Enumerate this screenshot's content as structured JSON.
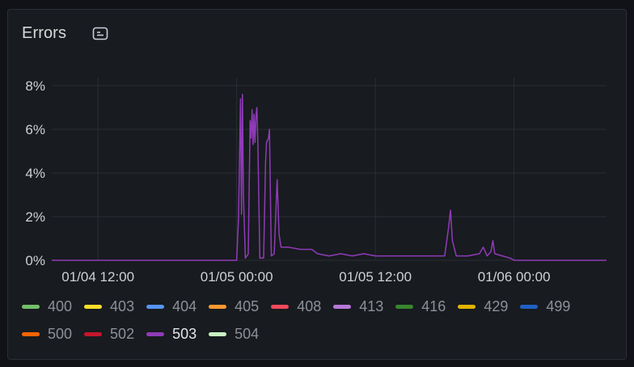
{
  "panel": {
    "title": "Errors",
    "description_icon": "info-description-icon"
  },
  "chart_data": {
    "type": "line",
    "title": "Errors",
    "xlabel": "",
    "ylabel": "",
    "y_ticks": [
      "0%",
      "2%",
      "4%",
      "6%",
      "8%"
    ],
    "ylim": [
      0,
      8
    ],
    "x_ticks": [
      "01/04 12:00",
      "01/05 00:00",
      "01/05 12:00",
      "01/06 00:00"
    ],
    "xlim": [
      "01/04 08:00",
      "01/06 08:00"
    ],
    "grid": true,
    "legend_position": "bottom",
    "visible_series": "503",
    "series_points": [
      [
        "01/04 08:00",
        0.0
      ],
      [
        "01/04 12:00",
        0.0
      ],
      [
        "01/04 18:00",
        0.0
      ],
      [
        "01/04 23:30",
        0.0
      ],
      [
        "01/05 00:00",
        0.0
      ],
      [
        "01/05 00:10",
        2.0
      ],
      [
        "01/05 00:20",
        7.4
      ],
      [
        "01/05 00:25",
        2.1
      ],
      [
        "01/05 00:30",
        7.6
      ],
      [
        "01/05 00:35",
        3.0
      ],
      [
        "01/05 00:45",
        0.1
      ],
      [
        "01/05 01:00",
        0.3
      ],
      [
        "01/05 01:10",
        6.4
      ],
      [
        "01/05 01:15",
        5.6
      ],
      [
        "01/05 01:20",
        6.9
      ],
      [
        "01/05 01:25",
        5.3
      ],
      [
        "01/05 01:30",
        6.7
      ],
      [
        "01/05 01:35",
        5.4
      ],
      [
        "01/05 01:40",
        6.6
      ],
      [
        "01/05 01:45",
        7.0
      ],
      [
        "01/05 01:50",
        5.3
      ],
      [
        "01/05 02:00",
        0.1
      ],
      [
        "01/05 02:20",
        0.1
      ],
      [
        "01/05 02:30",
        4.5
      ],
      [
        "01/05 02:35",
        5.4
      ],
      [
        "01/05 02:45",
        5.6
      ],
      [
        "01/05 02:50",
        6.0
      ],
      [
        "01/05 02:55",
        3.0
      ],
      [
        "01/05 03:00",
        0.2
      ],
      [
        "01/05 03:15",
        0.3
      ],
      [
        "01/05 03:30",
        3.7
      ],
      [
        "01/05 03:40",
        1.2
      ],
      [
        "01/05 03:50",
        0.6
      ],
      [
        "01/05 04:30",
        0.6
      ],
      [
        "01/05 05:30",
        0.5
      ],
      [
        "01/05 06:30",
        0.5
      ],
      [
        "01/05 07:00",
        0.3
      ],
      [
        "01/05 08:00",
        0.2
      ],
      [
        "01/05 09:00",
        0.3
      ],
      [
        "01/05 10:00",
        0.2
      ],
      [
        "01/05 11:00",
        0.3
      ],
      [
        "01/05 12:00",
        0.2
      ],
      [
        "01/05 13:00",
        0.2
      ],
      [
        "01/05 14:00",
        0.2
      ],
      [
        "01/05 15:00",
        0.2
      ],
      [
        "01/05 16:00",
        0.2
      ],
      [
        "01/05 17:30",
        0.2
      ],
      [
        "01/05 18:00",
        0.2
      ],
      [
        "01/05 18:20",
        1.5
      ],
      [
        "01/05 18:30",
        2.3
      ],
      [
        "01/05 18:40",
        0.9
      ],
      [
        "01/05 19:00",
        0.2
      ],
      [
        "01/05 20:00",
        0.2
      ],
      [
        "01/05 21:00",
        0.3
      ],
      [
        "01/05 21:20",
        0.6
      ],
      [
        "01/05 21:40",
        0.2
      ],
      [
        "01/05 22:00",
        0.4
      ],
      [
        "01/05 22:10",
        0.9
      ],
      [
        "01/05 22:20",
        0.3
      ],
      [
        "01/05 23:00",
        0.2
      ],
      [
        "01/05 23:40",
        0.1
      ],
      [
        "01/06 00:00",
        0.0
      ],
      [
        "01/06 04:00",
        0.0
      ],
      [
        "01/06 08:00",
        0.0
      ]
    ],
    "series": [
      {
        "name": "400",
        "color": "#73bf69"
      },
      {
        "name": "403",
        "color": "#fade2a"
      },
      {
        "name": "404",
        "color": "#5794f2"
      },
      {
        "name": "405",
        "color": "#ff9830"
      },
      {
        "name": "408",
        "color": "#f2495c"
      },
      {
        "name": "413",
        "color": "#b877d9"
      },
      {
        "name": "416",
        "color": "#37872d"
      },
      {
        "name": "429",
        "color": "#e0b400"
      },
      {
        "name": "499",
        "color": "#1f60c4"
      },
      {
        "name": "500",
        "color": "#fa6400"
      },
      {
        "name": "502",
        "color": "#c4162a"
      },
      {
        "name": "503",
        "color": "#8f3bb8"
      },
      {
        "name": "504",
        "color": "#c8f2c2"
      }
    ]
  }
}
